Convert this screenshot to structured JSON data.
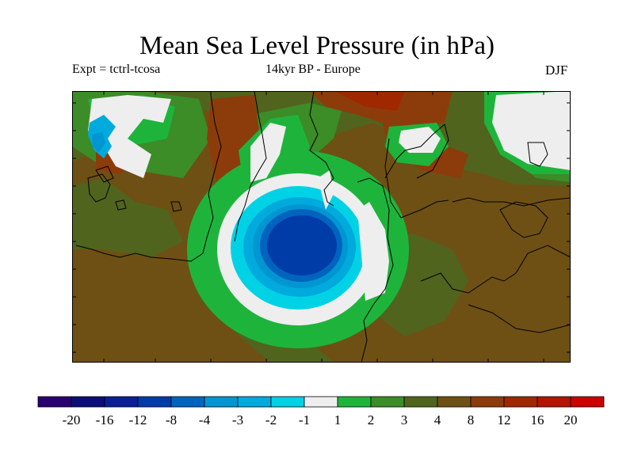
{
  "title": "Mean Sea Level Pressure (in hPa)",
  "experiment": "Expt = tctrl-tcosa",
  "period": "14kyr BP - Europe",
  "season": "DJF",
  "legend": {
    "tick_labels": [
      "-20",
      "-16",
      "-12",
      "-8",
      "-4",
      "-3",
      "-2",
      "-1",
      "1",
      "2",
      "3",
      "4",
      "8",
      "12",
      "16",
      "20"
    ],
    "colors": [
      "#2a0070",
      "#0d0d7a",
      "#0a1e96",
      "#003ca8",
      "#0064be",
      "#0096d2",
      "#00aadc",
      "#00d2e6",
      "#eeeeee",
      "#1eb43c",
      "#3c8c28",
      "#50641e",
      "#6e5014",
      "#8c3c0a",
      "#a02800",
      "#b41400",
      "#cc0000"
    ]
  },
  "map_colors": {
    "background": "#6e5014",
    "olive": "#50641e",
    "green": "#3c8c28",
    "light_green": "#1eb43c",
    "white": "#eeeeee",
    "cyan": "#00d2e6",
    "sky": "#00aadc",
    "mid_blue": "#0096d2",
    "blue": "#0064be",
    "deep_blue": "#003ca8",
    "orange": "#8c3c0a",
    "red": "#a02800",
    "outline": "#000000"
  }
}
